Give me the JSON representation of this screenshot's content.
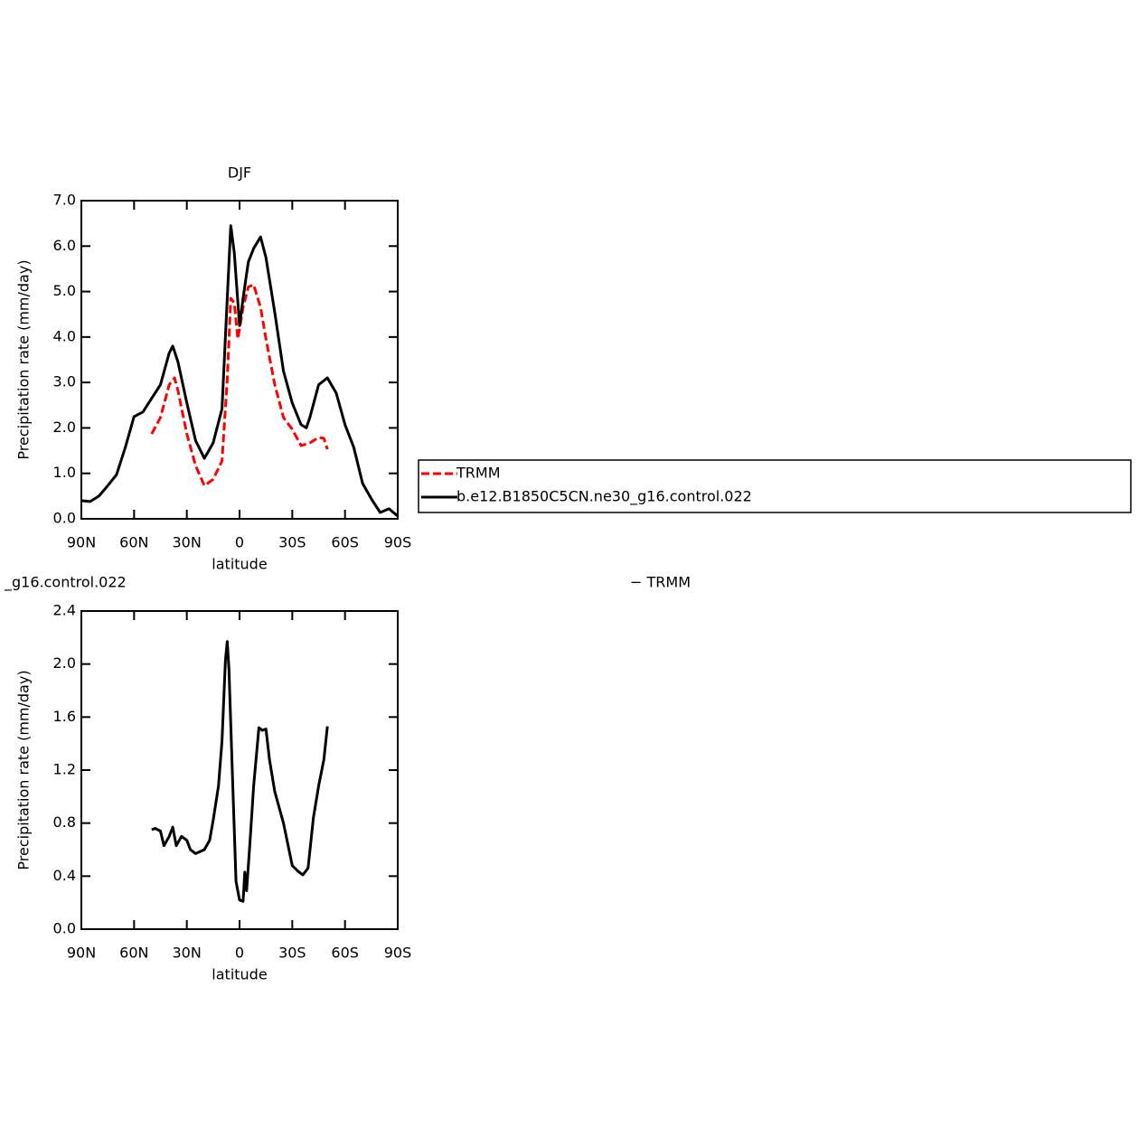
{
  "chart_data": [
    {
      "type": "line",
      "title": "DJF",
      "xlabel": "latitude",
      "ylabel": "Precipitation rate (mm/day)",
      "xlim": [
        90,
        -90
      ],
      "xticks": [
        {
          "value": 90,
          "label": "90N"
        },
        {
          "value": 60,
          "label": "60N"
        },
        {
          "value": 30,
          "label": "30N"
        },
        0,
        {
          "value": -30,
          "label": "30S"
        },
        {
          "value": -60,
          "label": "60S"
        },
        {
          "value": -90,
          "label": "90S"
        }
      ],
      "ylim": [
        0,
        7
      ],
      "yticks": [
        {
          "value": 0,
          "label": "0.0"
        },
        {
          "value": 1,
          "label": "1.0"
        },
        {
          "value": 2,
          "label": "2.0"
        },
        {
          "value": 3,
          "label": "3.0"
        },
        {
          "value": 4,
          "label": "4.0"
        },
        {
          "value": 5,
          "label": "5.0"
        },
        {
          "value": 6,
          "label": "6.0"
        },
        {
          "value": 7,
          "label": "7.0"
        }
      ],
      "legend": "right",
      "series": [
        {
          "name": "TRMM",
          "color": "#ff0000",
          "line_style": "dashed",
          "x": [
            50,
            45,
            40,
            37,
            35,
            30,
            25,
            20,
            15,
            10,
            7,
            5,
            3,
            1,
            -2,
            -5,
            -8,
            -12,
            -15,
            -20,
            -25,
            -30,
            -35,
            -40,
            -45,
            -48,
            -50
          ],
          "values": [
            1.87,
            2.23,
            2.95,
            3.1,
            2.82,
            1.87,
            1.17,
            0.73,
            0.87,
            1.27,
            3.06,
            4.85,
            4.75,
            3.96,
            4.65,
            5.1,
            5.15,
            4.65,
            3.96,
            2.96,
            2.23,
            1.97,
            1.61,
            1.67,
            1.79,
            1.77,
            1.53
          ]
        },
        {
          "name": "b.e12.B1850C5CN.ne30_g16.control.022",
          "color": "#000000",
          "line_style": "solid",
          "x": [
            90,
            85,
            80,
            75,
            70,
            65,
            60,
            55,
            50,
            45,
            40,
            38,
            35,
            30,
            25,
            20,
            15,
            10,
            7,
            5,
            3,
            0,
            -2,
            -5,
            -8,
            -12,
            -15,
            -20,
            -25,
            -30,
            -35,
            -38,
            -40,
            -45,
            -50,
            -55,
            -60,
            -65,
            -70,
            -75,
            -80,
            -85,
            -90
          ],
          "values": [
            0.4,
            0.38,
            0.5,
            0.73,
            0.97,
            1.57,
            2.25,
            2.35,
            2.65,
            2.95,
            3.65,
            3.8,
            3.45,
            2.55,
            1.72,
            1.33,
            1.67,
            2.42,
            4.85,
            6.45,
            5.85,
            4.25,
            4.85,
            5.65,
            5.95,
            6.2,
            5.75,
            4.55,
            3.25,
            2.55,
            2.07,
            2.0,
            2.23,
            2.95,
            3.1,
            2.77,
            2.07,
            1.57,
            0.78,
            0.44,
            0.14,
            0.22,
            0.06
          ]
        }
      ]
    },
    {
      "type": "line",
      "title": "_g16.control.022",
      "annotations": [
        "− TRMM"
      ],
      "xlabel": "latitude",
      "ylabel": "Precipitation rate (mm/day)",
      "xlim": [
        90,
        -90
      ],
      "xticks": [
        {
          "value": 90,
          "label": "90N"
        },
        {
          "value": 60,
          "label": "60N"
        },
        {
          "value": 30,
          "label": "30N"
        },
        0,
        {
          "value": -30,
          "label": "30S"
        },
        {
          "value": -60,
          "label": "60S"
        },
        {
          "value": -90,
          "label": "90S"
        }
      ],
      "ylim": [
        0,
        2.4
      ],
      "yticks": [
        {
          "value": 0,
          "label": "0.0"
        },
        {
          "value": 0.4,
          "label": "0.4"
        },
        {
          "value": 0.8,
          "label": "0.8"
        },
        {
          "value": 1.2,
          "label": "1.2"
        },
        {
          "value": 1.6,
          "label": "1.6"
        },
        {
          "value": 2.0,
          "label": "2.0"
        },
        {
          "value": 2.4,
          "label": "2.4"
        }
      ],
      "series": [
        {
          "color": "#000000",
          "line_style": "solid",
          "x": [
            50,
            48,
            45,
            43,
            40,
            38,
            36,
            33,
            30,
            28,
            25,
            20,
            17,
            15,
            12,
            10,
            8,
            7,
            6,
            4,
            2,
            0,
            -2,
            -3,
            -4,
            -6,
            -8,
            -11,
            -13,
            -15,
            -17,
            -20,
            -25,
            -30,
            -33,
            -36,
            -39,
            -42,
            -45,
            -48,
            -50
          ],
          "values": [
            0.75,
            0.76,
            0.74,
            0.63,
            0.7,
            0.77,
            0.63,
            0.7,
            0.67,
            0.6,
            0.57,
            0.6,
            0.67,
            0.82,
            1.08,
            1.42,
            2.03,
            2.17,
            1.96,
            1.15,
            0.36,
            0.22,
            0.21,
            0.43,
            0.29,
            0.67,
            1.08,
            1.52,
            1.5,
            1.51,
            1.28,
            1.04,
            0.8,
            0.48,
            0.44,
            0.41,
            0.46,
            0.84,
            1.08,
            1.28,
            1.53
          ]
        }
      ]
    }
  ]
}
